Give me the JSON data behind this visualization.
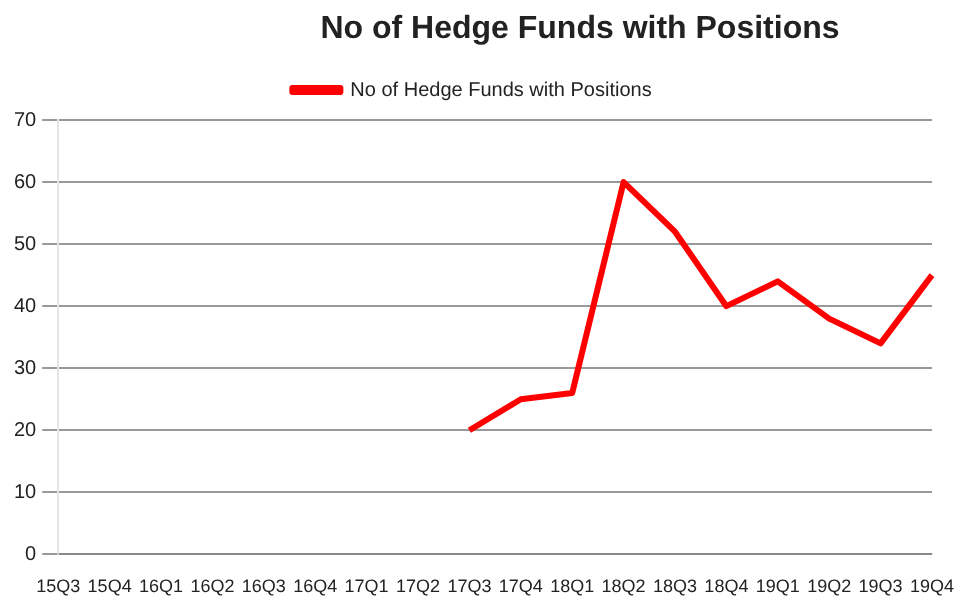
{
  "chart_data": {
    "type": "line",
    "title": "No of Hedge Funds with Positions",
    "categories": [
      "15Q3",
      "15Q4",
      "16Q1",
      "16Q2",
      "16Q3",
      "16Q4",
      "17Q1",
      "17Q2",
      "17Q3",
      "17Q4",
      "18Q1",
      "18Q2",
      "18Q3",
      "18Q4",
      "19Q1",
      "19Q2",
      "19Q3",
      "19Q4"
    ],
    "series": [
      {
        "name": "No of Hedge Funds with Positions",
        "color": "#ff0000",
        "values": [
          null,
          null,
          null,
          null,
          null,
          null,
          null,
          null,
          20,
          25,
          26,
          60,
          52,
          40,
          44,
          38,
          34,
          45
        ]
      }
    ],
    "ylim": [
      0,
      70
    ],
    "yticks": [
      0,
      10,
      20,
      30,
      40,
      50,
      60,
      70
    ],
    "grid": "y",
    "legend": "top",
    "marker": "none",
    "line_style": "solid"
  }
}
